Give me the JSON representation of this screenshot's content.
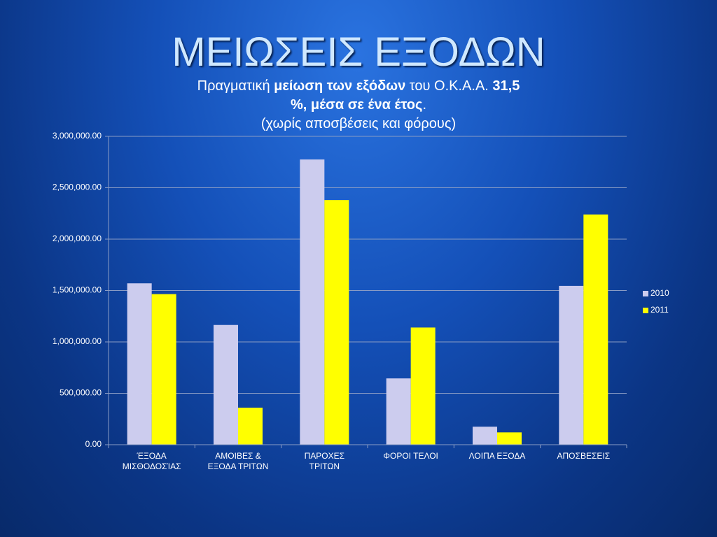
{
  "chart_data": {
    "type": "bar",
    "title": "ΜΕΙΩΣΕΙΣ ΕΞΟΔΩΝ",
    "subtitle_lines": [
      [
        {
          "text": "Πραγματική ",
          "bold": false
        },
        {
          "text": "μείωση των εξόδων",
          "bold": true
        },
        {
          "text": " του Ο.Κ.Α.Α. ",
          "bold": false
        },
        {
          "text": "31,5",
          "bold": true
        }
      ],
      [
        {
          "text": "%, μέσα σε ένα έτος",
          "bold": true
        },
        {
          "text": ".",
          "bold": false
        }
      ],
      [
        {
          "text": "(χωρίς αποσβέσεις και φόρους)",
          "bold": false
        }
      ]
    ],
    "categories": [
      "ΈΞΟΔΑ\nΜΙΣΘΟΔΟΣΊΑΣ",
      "ΑΜΟΙΒΕΣ &\nΕΞΟΔΑ ΤΡΙΤΩΝ",
      "ΠΑΡΟΧΕΣ\nΤΡΙΤΩΝ",
      "ΦΟΡΟΙ ΤΕΛΟΙ",
      "ΛΟΙΠΑ ΕΞΟΔΑ",
      "ΑΠΟΣΒΕΣΕΙΣ"
    ],
    "series": [
      {
        "name": "2010",
        "color": "#ccccee",
        "values": [
          1570000,
          1165000,
          2775000,
          645000,
          175000,
          1545000
        ]
      },
      {
        "name": "2011",
        "color": "#ffff00",
        "values": [
          1465000,
          360000,
          2380000,
          1140000,
          120000,
          2240000
        ]
      }
    ],
    "ylim": [
      0,
      3000000
    ],
    "yticks": [
      {
        "value": 0,
        "label": "0.00"
      },
      {
        "value": 500000,
        "label": "500,000.00"
      },
      {
        "value": 1000000,
        "label": "1,000,000.00"
      },
      {
        "value": 1500000,
        "label": "1,500,000.00"
      },
      {
        "value": 2000000,
        "label": "2,000,000.00"
      },
      {
        "value": 2500000,
        "label": "2,500,000.00"
      },
      {
        "value": 3000000,
        "label": "3,000,000.00"
      }
    ],
    "grid": true,
    "legend": "right"
  }
}
